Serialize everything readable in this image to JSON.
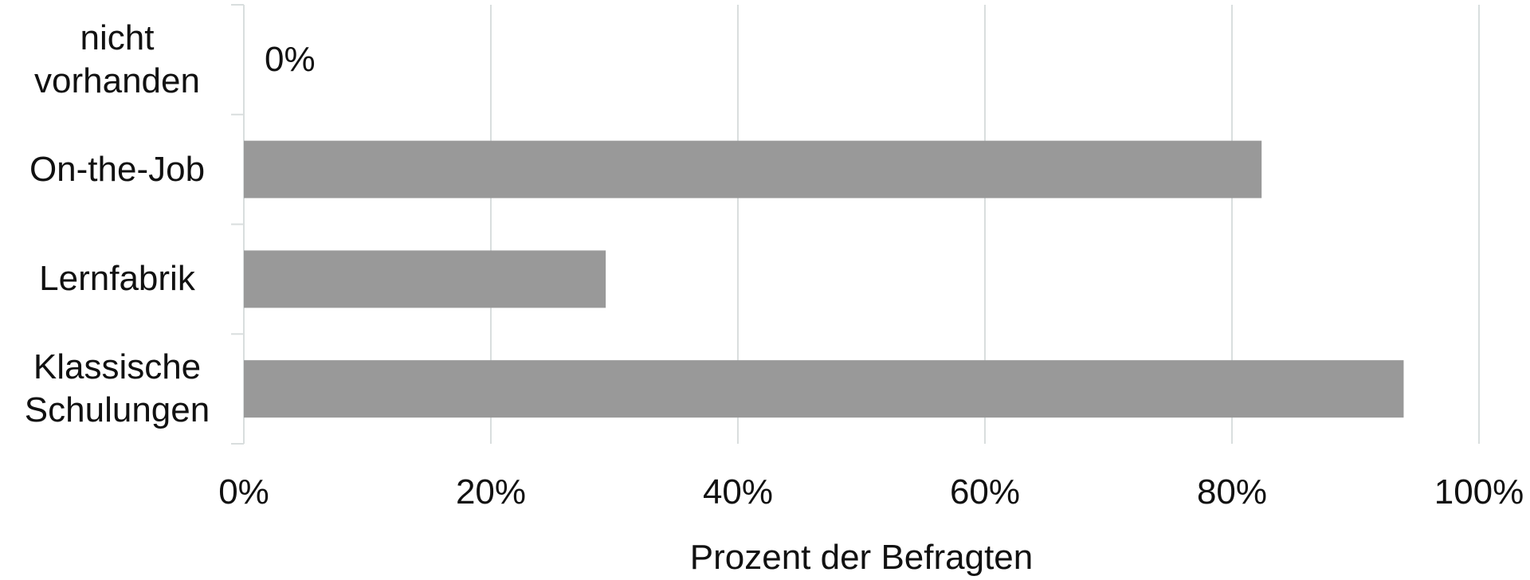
{
  "chart_data": {
    "type": "bar",
    "orientation": "horizontal",
    "categories": [
      "nicht vorhanden",
      "On-the-Job",
      "Lernfabrik",
      "Klassische Schulungen"
    ],
    "values": [
      0,
      82.4,
      29.3,
      93.9
    ],
    "value_labels": [
      "0%",
      null,
      null,
      null
    ],
    "color": "#999999",
    "x_label": "Prozent der Befragten",
    "xlim": [
      0,
      100
    ],
    "xticks": [
      {
        "value": 0,
        "label": "0%"
      },
      {
        "value": 20,
        "label": "20%"
      },
      {
        "value": 40,
        "label": "40%"
      },
      {
        "value": 60,
        "label": "60%"
      },
      {
        "value": 80,
        "label": "80%"
      },
      {
        "value": 100,
        "label": "100%"
      }
    ],
    "grid": true
  }
}
